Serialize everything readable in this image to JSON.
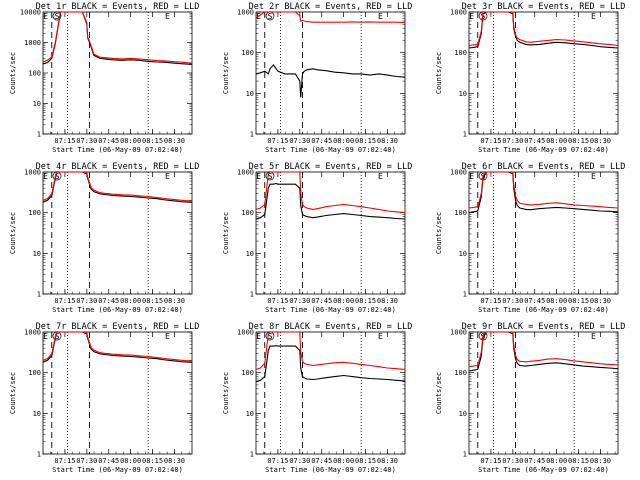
{
  "colors": {
    "events": "#000000",
    "lld": "#ff0000"
  },
  "shared": {
    "xticks": [
      "07:15",
      "07:30",
      "07:45",
      "08:00",
      "08:15",
      "08:30"
    ],
    "xlabel": "Start Time (06-May-09 07:02:40)",
    "ylabel": "Counts/sec",
    "marker_labels": [
      "E",
      "S",
      "E"
    ]
  },
  "chart_data": [
    {
      "type": "line",
      "title": "Det 1r BLACK = Events, RED = LLD",
      "xlabel": "Start Time (06-May-09 07:02:40)",
      "ylabel": "Counts/sec",
      "x": [
        7.0,
        7.05,
        7.1,
        7.14,
        7.16,
        7.2,
        7.23,
        7.25,
        7.33,
        7.45,
        7.5,
        7.51,
        7.53,
        7.55,
        7.58,
        7.65,
        7.7,
        7.8,
        7.9,
        8.0,
        8.1,
        8.2,
        8.3,
        8.4,
        8.5,
        8.6,
        8.7
      ],
      "ylim": [
        1,
        10000
      ],
      "yscale": "log",
      "yticks": [
        "1",
        "10",
        "100",
        "1000",
        "10000"
      ],
      "xticks": [
        "07:15",
        "07:30",
        "07:45",
        "08:00",
        "08:15",
        "08:30"
      ],
      "series": [
        {
          "name": "Events",
          "values": [
            200,
            220,
            300,
            900,
            2000,
            10000,
            10000,
            10000,
            10000,
            10000,
            4000,
            1400,
            1000,
            700,
            380,
            300,
            290,
            270,
            260,
            270,
            260,
            240,
            230,
            225,
            210,
            200,
            190
          ]
        },
        {
          "name": "LLD",
          "values": [
            230,
            260,
            340,
            1000,
            2200,
            10000,
            10000,
            10000,
            10000,
            10000,
            4400,
            1500,
            1100,
            760,
            420,
            330,
            320,
            300,
            290,
            300,
            290,
            270,
            255,
            250,
            235,
            225,
            210
          ]
        }
      ]
    },
    {
      "type": "line",
      "title": "Det 2r BLACK = Events, RED = LLD",
      "xlabel": "Start Time (06-May-09 07:02:40)",
      "ylabel": "Counts/sec",
      "x": [
        7.0,
        7.05,
        7.1,
        7.14,
        7.16,
        7.2,
        7.23,
        7.25,
        7.33,
        7.45,
        7.5,
        7.51,
        7.53,
        7.55,
        7.58,
        7.65,
        7.7,
        7.8,
        7.9,
        8.0,
        8.1,
        8.2,
        8.3,
        8.4,
        8.5,
        8.6,
        8.7
      ],
      "ylim": [
        1,
        1000
      ],
      "yscale": "log",
      "yticks": [
        "1",
        "10",
        "100",
        "1000"
      ],
      "xticks": [
        "07:15",
        "07:30",
        "07:45",
        "08:00",
        "08:15",
        "08:30"
      ],
      "series": [
        {
          "name": "Events",
          "values": [
            30,
            32,
            35,
            30,
            40,
            50,
            40,
            35,
            30,
            30,
            20,
            8,
            30,
            35,
            38,
            40,
            38,
            36,
            33,
            32,
            30,
            30,
            28,
            30,
            28,
            26,
            25
          ]
        },
        {
          "name": "LLD",
          "values": [
            700,
            850,
            1000,
            1000,
            1000,
            1000,
            1000,
            1000,
            1000,
            1000,
            800,
            600,
            620,
            600,
            580,
            560,
            560,
            560,
            560,
            560,
            570,
            560,
            570,
            560,
            560,
            560,
            550
          ]
        }
      ]
    },
    {
      "type": "line",
      "title": "Det 3r BLACK = Events, RED = LLD",
      "xlabel": "Start Time (06-May-09 07:02:40)",
      "ylabel": "Counts/sec",
      "x": [
        7.0,
        7.05,
        7.1,
        7.14,
        7.16,
        7.2,
        7.23,
        7.25,
        7.33,
        7.45,
        7.5,
        7.51,
        7.53,
        7.55,
        7.58,
        7.65,
        7.7,
        7.8,
        7.9,
        8.0,
        8.1,
        8.2,
        8.3,
        8.4,
        8.5,
        8.6,
        8.7
      ],
      "ylim": [
        1,
        1000
      ],
      "yscale": "log",
      "yticks": [
        "1",
        "10",
        "100",
        "1000"
      ],
      "xticks": [
        "07:15",
        "07:30",
        "07:45",
        "08:00",
        "08:15",
        "08:30"
      ],
      "series": [
        {
          "name": "Events",
          "values": [
            130,
            135,
            140,
            300,
            900,
            1000,
            1000,
            1000,
            1000,
            1000,
            900,
            400,
            250,
            200,
            180,
            160,
            155,
            160,
            170,
            180,
            175,
            165,
            160,
            150,
            140,
            135,
            130
          ]
        },
        {
          "name": "LLD",
          "values": [
            150,
            155,
            160,
            340,
            1000,
            1000,
            1000,
            1000,
            1000,
            1000,
            1000,
            450,
            280,
            230,
            210,
            185,
            180,
            190,
            200,
            210,
            205,
            195,
            185,
            175,
            165,
            160,
            150
          ]
        }
      ]
    },
    {
      "type": "line",
      "title": "Det 4r BLACK = Events, RED = LLD",
      "xlabel": "Start Time (06-May-09 07:02:40)",
      "ylabel": "Counts/sec",
      "x": [
        7.0,
        7.05,
        7.1,
        7.14,
        7.16,
        7.2,
        7.23,
        7.25,
        7.33,
        7.45,
        7.5,
        7.51,
        7.53,
        7.55,
        7.58,
        7.65,
        7.7,
        7.8,
        7.9,
        8.0,
        8.1,
        8.2,
        8.3,
        8.4,
        8.5,
        8.6,
        8.7
      ],
      "ylim": [
        1,
        1000
      ],
      "yscale": "log",
      "yticks": [
        "1",
        "10",
        "100",
        "1000"
      ],
      "xticks": [
        "07:15",
        "07:30",
        "07:45",
        "08:00",
        "08:15",
        "08:30"
      ],
      "series": [
        {
          "name": "Events",
          "values": [
            180,
            200,
            260,
            700,
            1000,
            1000,
            1000,
            1000,
            1000,
            1000,
            900,
            700,
            500,
            380,
            330,
            290,
            280,
            265,
            255,
            250,
            240,
            230,
            220,
            205,
            195,
            185,
            180
          ]
        },
        {
          "name": "LLD",
          "values": [
            200,
            220,
            290,
            760,
            1000,
            1000,
            1000,
            1000,
            1000,
            1000,
            960,
            760,
            540,
            410,
            360,
            310,
            300,
            285,
            275,
            270,
            260,
            250,
            235,
            220,
            210,
            200,
            195
          ]
        }
      ]
    },
    {
      "type": "line",
      "title": "Det 5r BLACK = Events, RED = LLD",
      "xlabel": "Start Time (06-May-09 07:02:40)",
      "ylabel": "Counts/sec",
      "x": [
        7.0,
        7.05,
        7.1,
        7.14,
        7.16,
        7.2,
        7.23,
        7.25,
        7.33,
        7.45,
        7.5,
        7.51,
        7.53,
        7.55,
        7.58,
        7.65,
        7.7,
        7.8,
        7.9,
        8.0,
        8.1,
        8.2,
        8.3,
        8.4,
        8.5,
        8.6,
        8.7
      ],
      "ylim": [
        1,
        1000
      ],
      "yscale": "log",
      "yticks": [
        "1",
        "10",
        "100",
        "1000"
      ],
      "xticks": [
        "07:15",
        "07:30",
        "07:45",
        "08:00",
        "08:15",
        "08:30"
      ],
      "series": [
        {
          "name": "Events",
          "values": [
            70,
            75,
            90,
            400,
            500,
            500,
            520,
            500,
            500,
            500,
            400,
            150,
            90,
            85,
            80,
            75,
            78,
            85,
            90,
            95,
            90,
            85,
            80,
            78,
            75,
            72,
            70
          ]
        },
        {
          "name": "LLD",
          "values": [
            120,
            130,
            160,
            900,
            1000,
            1000,
            1000,
            1000,
            1000,
            1000,
            1000,
            300,
            160,
            140,
            130,
            120,
            125,
            140,
            150,
            160,
            150,
            140,
            130,
            120,
            110,
            105,
            100
          ]
        }
      ]
    },
    {
      "type": "line",
      "title": "Det 6r BLACK = Events, RED = LLD",
      "xlabel": "Start Time (06-May-09 07:02:40)",
      "ylabel": "Counts/sec",
      "x": [
        7.0,
        7.05,
        7.1,
        7.14,
        7.16,
        7.2,
        7.23,
        7.25,
        7.33,
        7.45,
        7.5,
        7.51,
        7.53,
        7.55,
        7.58,
        7.65,
        7.7,
        7.8,
        7.9,
        8.0,
        8.1,
        8.2,
        8.3,
        8.4,
        8.5,
        8.6,
        8.7
      ],
      "ylim": [
        1,
        1000
      ],
      "yscale": "log",
      "yticks": [
        "1",
        "10",
        "100",
        "1000"
      ],
      "xticks": [
        "07:15",
        "07:30",
        "07:45",
        "08:00",
        "08:15",
        "08:30"
      ],
      "series": [
        {
          "name": "Events",
          "values": [
            100,
            105,
            110,
            250,
            700,
            1000,
            1000,
            1000,
            1000,
            1000,
            900,
            400,
            200,
            150,
            130,
            120,
            118,
            125,
            130,
            135,
            130,
            125,
            120,
            115,
            110,
            108,
            105
          ]
        },
        {
          "name": "LLD",
          "values": [
            130,
            135,
            140,
            300,
            800,
            1000,
            1000,
            1000,
            1000,
            1000,
            1000,
            500,
            260,
            200,
            170,
            160,
            155,
            160,
            170,
            175,
            165,
            155,
            150,
            145,
            140,
            135,
            130
          ]
        }
      ]
    },
    {
      "type": "line",
      "title": "Det 7r BLACK = Events, RED = LLD",
      "xlabel": "Start Time (06-May-09 07:02:40)",
      "ylabel": "Counts/sec",
      "x": [
        7.0,
        7.05,
        7.1,
        7.14,
        7.16,
        7.2,
        7.23,
        7.25,
        7.33,
        7.45,
        7.5,
        7.51,
        7.53,
        7.55,
        7.58,
        7.65,
        7.7,
        7.8,
        7.9,
        8.0,
        8.1,
        8.2,
        8.3,
        8.4,
        8.5,
        8.6,
        8.7
      ],
      "ylim": [
        1,
        1000
      ],
      "yscale": "log",
      "yticks": [
        "1",
        "10",
        "100",
        "1000"
      ],
      "xticks": [
        "07:15",
        "07:30",
        "07:45",
        "08:00",
        "08:15",
        "08:30"
      ],
      "series": [
        {
          "name": "Events",
          "values": [
            180,
            200,
            260,
            700,
            1000,
            1000,
            1000,
            1000,
            1000,
            1000,
            900,
            700,
            500,
            380,
            330,
            290,
            280,
            265,
            255,
            250,
            240,
            230,
            220,
            205,
            195,
            185,
            180
          ]
        },
        {
          "name": "LLD",
          "values": [
            200,
            220,
            290,
            760,
            1000,
            1000,
            1000,
            1000,
            1000,
            1000,
            960,
            760,
            540,
            410,
            360,
            310,
            300,
            285,
            275,
            270,
            260,
            250,
            235,
            220,
            210,
            200,
            195
          ]
        }
      ]
    },
    {
      "type": "line",
      "title": "Det 8r BLACK = Events, RED = LLD",
      "xlabel": "Start Time (06-May-09 07:02:40)",
      "ylabel": "Counts/sec",
      "x": [
        7.0,
        7.05,
        7.1,
        7.14,
        7.16,
        7.2,
        7.23,
        7.25,
        7.33,
        7.45,
        7.5,
        7.51,
        7.53,
        7.55,
        7.58,
        7.65,
        7.7,
        7.8,
        7.9,
        8.0,
        8.1,
        8.2,
        8.3,
        8.4,
        8.5,
        8.6,
        8.7
      ],
      "ylim": [
        1,
        1000
      ],
      "yscale": "log",
      "yticks": [
        "1",
        "10",
        "100",
        "1000"
      ],
      "xticks": [
        "07:15",
        "07:30",
        "07:45",
        "08:00",
        "08:15",
        "08:30"
      ],
      "series": [
        {
          "name": "Events",
          "values": [
            60,
            65,
            80,
            350,
            450,
            450,
            460,
            450,
            450,
            450,
            350,
            130,
            80,
            75,
            70,
            68,
            70,
            75,
            80,
            85,
            80,
            75,
            72,
            70,
            68,
            65,
            62
          ]
        },
        {
          "name": "LLD",
          "values": [
            120,
            130,
            170,
            900,
            1000,
            1000,
            1000,
            1000,
            1000,
            1000,
            1000,
            320,
            190,
            170,
            160,
            150,
            155,
            165,
            175,
            180,
            170,
            160,
            150,
            140,
            130,
            125,
            120
          ]
        }
      ]
    },
    {
      "type": "line",
      "title": "Det 9r BLACK = Events, RED = LLD",
      "xlabel": "Start Time (06-May-09 07:02:40)",
      "ylabel": "Counts/sec",
      "x": [
        7.0,
        7.05,
        7.1,
        7.14,
        7.16,
        7.2,
        7.23,
        7.25,
        7.33,
        7.45,
        7.5,
        7.51,
        7.53,
        7.55,
        7.58,
        7.65,
        7.7,
        7.8,
        7.9,
        8.0,
        8.1,
        8.2,
        8.3,
        8.4,
        8.5,
        8.6,
        8.7
      ],
      "ylim": [
        1,
        1000
      ],
      "yscale": "log",
      "yticks": [
        "1",
        "10",
        "100",
        "1000"
      ],
      "xticks": [
        "07:15",
        "07:30",
        "07:45",
        "08:00",
        "08:15",
        "08:30"
      ],
      "series": [
        {
          "name": "Events",
          "values": [
            110,
            115,
            120,
            260,
            720,
            1000,
            1000,
            1000,
            1000,
            1000,
            900,
            400,
            220,
            170,
            150,
            145,
            150,
            160,
            170,
            175,
            165,
            155,
            145,
            140,
            135,
            130,
            125
          ]
        },
        {
          "name": "LLD",
          "values": [
            140,
            145,
            150,
            320,
            850,
            1000,
            1000,
            1000,
            1000,
            1000,
            1000,
            480,
            270,
            210,
            190,
            185,
            190,
            200,
            215,
            220,
            210,
            195,
            185,
            175,
            165,
            160,
            155
          ]
        }
      ]
    }
  ]
}
